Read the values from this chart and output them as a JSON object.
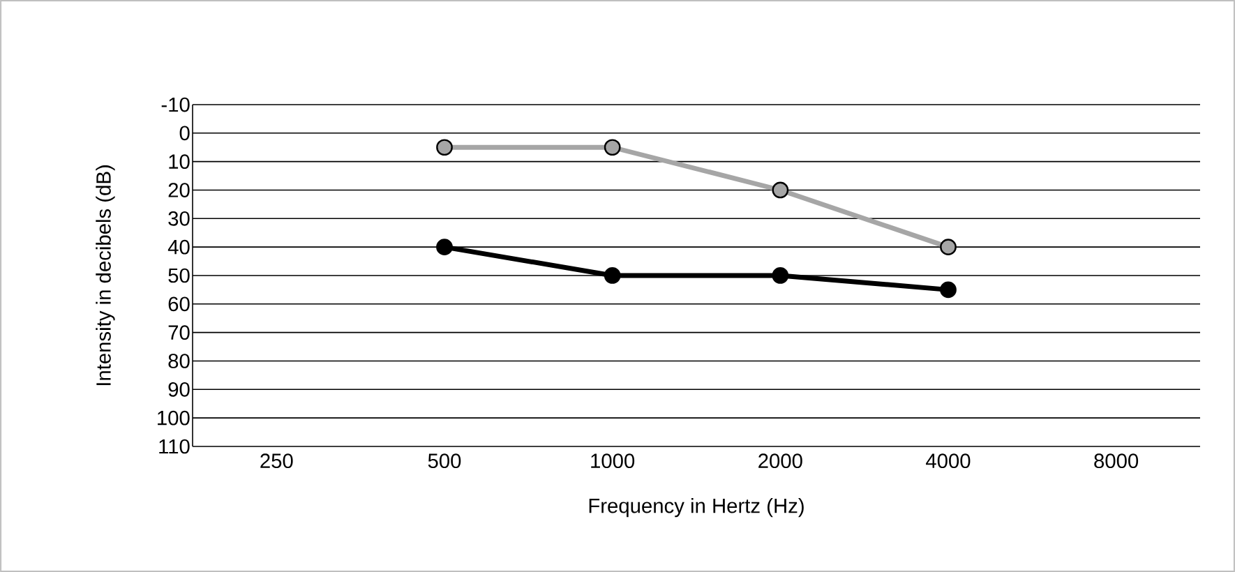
{
  "chart_data": {
    "type": "line",
    "xlabel": "Frequency in Hertz (Hz)",
    "ylabel": "Intensity in decibels (dB)",
    "categories": [
      "250",
      "500",
      "1000",
      "2000",
      "4000",
      "8000"
    ],
    "series": [
      {
        "color": "#a6a6a6",
        "values": [
          null,
          5,
          5,
          20,
          40,
          null
        ]
      },
      {
        "color": "#000000",
        "values": [
          null,
          40,
          50,
          50,
          55,
          null
        ]
      }
    ],
    "ylim": [
      110,
      -10
    ],
    "yticks": [
      -10,
      0,
      10,
      20,
      30,
      40,
      50,
      60,
      70,
      80,
      90,
      100,
      110
    ],
    "grid": "y",
    "marker": "circle"
  }
}
